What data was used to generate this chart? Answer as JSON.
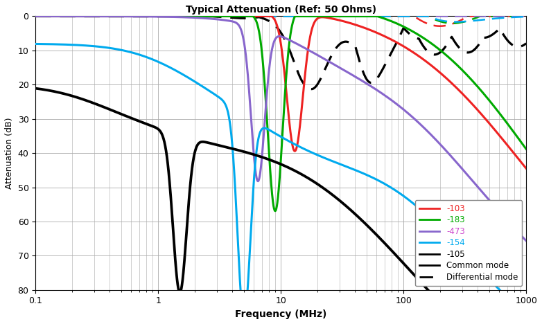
{
  "title": "Typical Attenuation (Ref: 50 Ohms)",
  "xlabel": "Frequency (MHz)",
  "ylabel": "Attenuation (dB)",
  "ylim": [
    80,
    0
  ],
  "xlim": [
    0.1,
    1000
  ],
  "yticks": [
    0,
    10,
    20,
    30,
    40,
    50,
    60,
    70,
    80
  ],
  "colors": {
    "red": "#ee2222",
    "green": "#00aa00",
    "purple": "#8866cc",
    "blue": "#00aaee",
    "black": "#000000"
  },
  "legend_text_colors": {
    "-103": "#ee2222",
    "-183": "#00aa00",
    "-473": "#cc44cc",
    "-154": "#00aaee",
    "-105": "#000000",
    "Common mode": "#000000",
    "Differential mode": "#000000"
  },
  "grid_color": "#aaaaaa",
  "axis_label_color": "#000000",
  "tick_color": "#000000",
  "spine_color": "#000000",
  "bg_color": "#ffffff",
  "title_color": "#000000"
}
